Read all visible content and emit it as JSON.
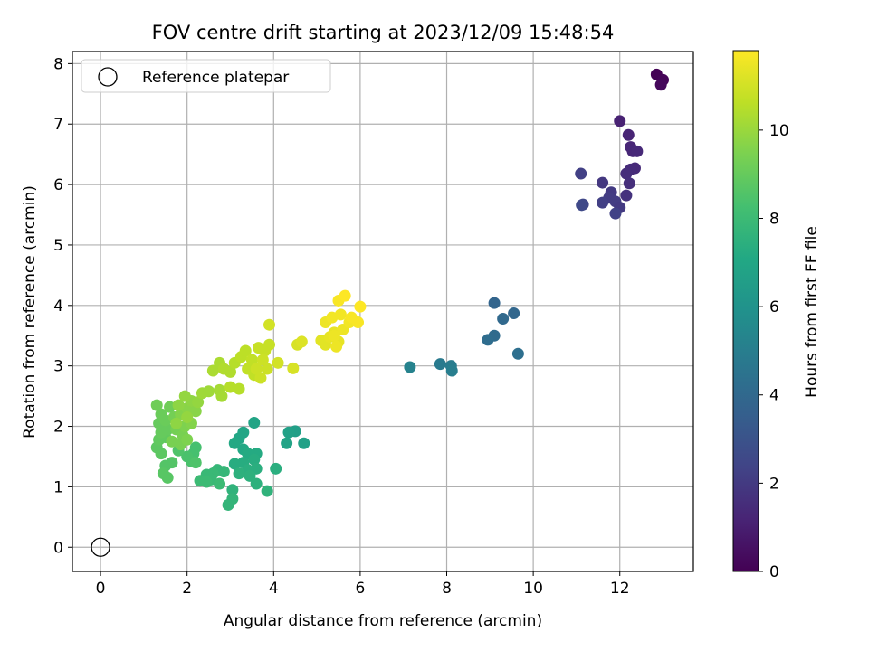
{
  "chart_data": {
    "type": "scatter",
    "title": "FOV centre drift starting at 2023/12/09 15:48:54",
    "xlabel": "Angular distance from reference (arcmin)",
    "ylabel": "Rotation from reference (arcmin)",
    "xlim": [
      -0.65,
      13.7
    ],
    "ylim": [
      -0.4,
      8.2
    ],
    "xticks": [
      0,
      2,
      4,
      6,
      8,
      10,
      12
    ],
    "yticks": [
      0,
      1,
      2,
      3,
      4,
      5,
      6,
      7,
      8
    ],
    "grid": true,
    "legend": {
      "position": "top-left",
      "entries": [
        "Reference platepar"
      ]
    },
    "reference_point": {
      "x": 0,
      "y": 0,
      "label": "Reference platepar"
    },
    "colorbar": {
      "label": "Hours from first FF file",
      "colormap": "viridis",
      "range": [
        0,
        11.8
      ],
      "ticks": [
        0,
        2,
        4,
        6,
        8,
        10
      ]
    },
    "points": [
      {
        "x": 12.85,
        "y": 7.82,
        "c": 0.05
      },
      {
        "x": 13.0,
        "y": 7.73,
        "c": 0.15
      },
      {
        "x": 12.95,
        "y": 7.65,
        "c": 0.25
      },
      {
        "x": 12.0,
        "y": 7.05,
        "c": 1.1
      },
      {
        "x": 12.2,
        "y": 6.82,
        "c": 1.2
      },
      {
        "x": 12.25,
        "y": 6.62,
        "c": 1.25
      },
      {
        "x": 12.3,
        "y": 6.55,
        "c": 1.3
      },
      {
        "x": 12.4,
        "y": 6.55,
        "c": 1.35
      },
      {
        "x": 12.35,
        "y": 6.27,
        "c": 1.4
      },
      {
        "x": 12.25,
        "y": 6.25,
        "c": 1.45
      },
      {
        "x": 12.15,
        "y": 6.18,
        "c": 1.5
      },
      {
        "x": 12.22,
        "y": 6.02,
        "c": 1.6
      },
      {
        "x": 12.15,
        "y": 5.82,
        "c": 1.7
      },
      {
        "x": 11.6,
        "y": 6.03,
        "c": 1.9
      },
      {
        "x": 11.1,
        "y": 6.18,
        "c": 2.2
      },
      {
        "x": 11.8,
        "y": 5.87,
        "c": 2.0
      },
      {
        "x": 11.75,
        "y": 5.78,
        "c": 2.1
      },
      {
        "x": 11.9,
        "y": 5.72,
        "c": 2.1
      },
      {
        "x": 11.6,
        "y": 5.7,
        "c": 2.2
      },
      {
        "x": 12.0,
        "y": 5.62,
        "c": 2.0
      },
      {
        "x": 11.9,
        "y": 5.52,
        "c": 2.3
      },
      {
        "x": 11.15,
        "y": 5.67,
        "c": 2.5
      },
      {
        "x": 11.12,
        "y": 5.66,
        "c": 2.6
      },
      {
        "x": 9.1,
        "y": 4.04,
        "c": 3.8
      },
      {
        "x": 9.55,
        "y": 3.87,
        "c": 3.9
      },
      {
        "x": 9.3,
        "y": 3.78,
        "c": 4.0
      },
      {
        "x": 9.1,
        "y": 3.5,
        "c": 4.1
      },
      {
        "x": 8.95,
        "y": 3.43,
        "c": 4.2
      },
      {
        "x": 9.65,
        "y": 3.2,
        "c": 4.3
      },
      {
        "x": 7.85,
        "y": 3.03,
        "c": 4.8
      },
      {
        "x": 8.1,
        "y": 3.0,
        "c": 4.9
      },
      {
        "x": 8.12,
        "y": 2.92,
        "c": 5.0
      },
      {
        "x": 7.15,
        "y": 2.98,
        "c": 5.2
      },
      {
        "x": 4.5,
        "y": 1.92,
        "c": 6.6
      },
      {
        "x": 4.35,
        "y": 1.9,
        "c": 6.7
      },
      {
        "x": 4.7,
        "y": 1.72,
        "c": 6.7
      },
      {
        "x": 4.3,
        "y": 1.72,
        "c": 6.8
      },
      {
        "x": 3.55,
        "y": 2.06,
        "c": 6.9
      },
      {
        "x": 3.3,
        "y": 1.9,
        "c": 7.0
      },
      {
        "x": 3.2,
        "y": 1.8,
        "c": 7.0
      },
      {
        "x": 3.1,
        "y": 1.72,
        "c": 7.1
      },
      {
        "x": 3.3,
        "y": 1.62,
        "c": 7.1
      },
      {
        "x": 3.4,
        "y": 1.55,
        "c": 7.2
      },
      {
        "x": 3.6,
        "y": 1.55,
        "c": 7.2
      },
      {
        "x": 3.55,
        "y": 1.45,
        "c": 7.3
      },
      {
        "x": 3.3,
        "y": 1.4,
        "c": 7.3
      },
      {
        "x": 3.1,
        "y": 1.38,
        "c": 7.3
      },
      {
        "x": 3.6,
        "y": 1.3,
        "c": 7.4
      },
      {
        "x": 3.4,
        "y": 1.28,
        "c": 7.4
      },
      {
        "x": 3.2,
        "y": 1.22,
        "c": 7.5
      },
      {
        "x": 3.45,
        "y": 1.18,
        "c": 7.5
      },
      {
        "x": 3.6,
        "y": 1.05,
        "c": 7.5
      },
      {
        "x": 4.05,
        "y": 1.3,
        "c": 7.4
      },
      {
        "x": 3.85,
        "y": 0.93,
        "c": 7.6
      },
      {
        "x": 3.05,
        "y": 0.95,
        "c": 7.6
      },
      {
        "x": 3.05,
        "y": 0.8,
        "c": 7.7
      },
      {
        "x": 2.95,
        "y": 0.7,
        "c": 7.7
      },
      {
        "x": 2.7,
        "y": 1.28,
        "c": 7.8
      },
      {
        "x": 2.85,
        "y": 1.25,
        "c": 7.8
      },
      {
        "x": 2.6,
        "y": 1.22,
        "c": 7.9
      },
      {
        "x": 2.45,
        "y": 1.2,
        "c": 7.9
      },
      {
        "x": 2.55,
        "y": 1.12,
        "c": 7.9
      },
      {
        "x": 2.3,
        "y": 1.1,
        "c": 8.0
      },
      {
        "x": 2.45,
        "y": 1.08,
        "c": 8.0
      },
      {
        "x": 2.75,
        "y": 1.05,
        "c": 8.0
      },
      {
        "x": 2.2,
        "y": 1.65,
        "c": 8.3
      },
      {
        "x": 2.15,
        "y": 1.55,
        "c": 8.3
      },
      {
        "x": 2.0,
        "y": 1.5,
        "c": 8.4
      },
      {
        "x": 2.1,
        "y": 1.42,
        "c": 8.4
      },
      {
        "x": 2.2,
        "y": 1.4,
        "c": 8.5
      },
      {
        "x": 1.8,
        "y": 1.6,
        "c": 8.5
      },
      {
        "x": 1.65,
        "y": 1.4,
        "c": 8.6
      },
      {
        "x": 1.5,
        "y": 1.35,
        "c": 8.6
      },
      {
        "x": 1.45,
        "y": 1.22,
        "c": 8.7
      },
      {
        "x": 1.55,
        "y": 1.15,
        "c": 8.7
      },
      {
        "x": 1.4,
        "y": 1.55,
        "c": 8.8
      },
      {
        "x": 1.3,
        "y": 1.65,
        "c": 8.8
      },
      {
        "x": 1.35,
        "y": 1.78,
        "c": 8.9
      },
      {
        "x": 1.5,
        "y": 1.82,
        "c": 8.9
      },
      {
        "x": 1.4,
        "y": 1.9,
        "c": 9.0
      },
      {
        "x": 1.55,
        "y": 1.95,
        "c": 9.0
      },
      {
        "x": 1.35,
        "y": 2.05,
        "c": 9.0
      },
      {
        "x": 1.5,
        "y": 2.1,
        "c": 9.1
      },
      {
        "x": 1.4,
        "y": 2.2,
        "c": 9.1
      },
      {
        "x": 1.3,
        "y": 2.35,
        "c": 9.2
      },
      {
        "x": 1.6,
        "y": 2.32,
        "c": 9.2
      },
      {
        "x": 1.7,
        "y": 2.15,
        "c": 9.3
      },
      {
        "x": 1.75,
        "y": 1.95,
        "c": 9.3
      },
      {
        "x": 1.9,
        "y": 1.85,
        "c": 9.4
      },
      {
        "x": 1.85,
        "y": 1.7,
        "c": 9.4
      },
      {
        "x": 1.65,
        "y": 1.75,
        "c": 9.4
      },
      {
        "x": 2.0,
        "y": 1.78,
        "c": 9.5
      },
      {
        "x": 1.95,
        "y": 2.0,
        "c": 9.5
      },
      {
        "x": 2.1,
        "y": 2.05,
        "c": 9.6
      },
      {
        "x": 1.85,
        "y": 2.2,
        "c": 9.6
      },
      {
        "x": 2.0,
        "y": 2.3,
        "c": 9.7
      },
      {
        "x": 2.2,
        "y": 2.25,
        "c": 9.7
      },
      {
        "x": 1.8,
        "y": 2.35,
        "c": 9.8
      },
      {
        "x": 2.1,
        "y": 2.42,
        "c": 9.8
      },
      {
        "x": 1.95,
        "y": 2.5,
        "c": 9.9
      },
      {
        "x": 2.25,
        "y": 2.4,
        "c": 9.9
      },
      {
        "x": 2.0,
        "y": 2.15,
        "c": 9.9
      },
      {
        "x": 1.75,
        "y": 2.05,
        "c": 9.8
      },
      {
        "x": 2.35,
        "y": 2.55,
        "c": 10.1
      },
      {
        "x": 2.5,
        "y": 2.58,
        "c": 10.1
      },
      {
        "x": 2.75,
        "y": 2.6,
        "c": 10.2
      },
      {
        "x": 2.8,
        "y": 2.5,
        "c": 10.2
      },
      {
        "x": 2.6,
        "y": 2.92,
        "c": 10.3
      },
      {
        "x": 2.75,
        "y": 3.05,
        "c": 10.3
      },
      {
        "x": 2.85,
        "y": 2.95,
        "c": 10.4
      },
      {
        "x": 3.0,
        "y": 2.9,
        "c": 10.4
      },
      {
        "x": 3.1,
        "y": 3.05,
        "c": 10.5
      },
      {
        "x": 3.0,
        "y": 2.65,
        "c": 10.5
      },
      {
        "x": 3.2,
        "y": 2.62,
        "c": 10.5
      },
      {
        "x": 3.25,
        "y": 3.15,
        "c": 10.6
      },
      {
        "x": 3.35,
        "y": 3.25,
        "c": 10.6
      },
      {
        "x": 3.5,
        "y": 3.1,
        "c": 10.7
      },
      {
        "x": 3.4,
        "y": 2.95,
        "c": 10.7
      },
      {
        "x": 3.55,
        "y": 2.85,
        "c": 10.7
      },
      {
        "x": 3.65,
        "y": 3.3,
        "c": 10.8
      },
      {
        "x": 3.8,
        "y": 3.25,
        "c": 10.8
      },
      {
        "x": 3.9,
        "y": 3.35,
        "c": 10.8
      },
      {
        "x": 3.75,
        "y": 3.1,
        "c": 10.9
      },
      {
        "x": 3.85,
        "y": 2.95,
        "c": 10.9
      },
      {
        "x": 3.6,
        "y": 2.95,
        "c": 10.9
      },
      {
        "x": 3.9,
        "y": 3.68,
        "c": 11.0
      },
      {
        "x": 4.1,
        "y": 3.05,
        "c": 11.0
      },
      {
        "x": 3.7,
        "y": 2.8,
        "c": 10.9
      },
      {
        "x": 4.45,
        "y": 2.96,
        "c": 11.1
      },
      {
        "x": 4.55,
        "y": 3.35,
        "c": 11.1
      },
      {
        "x": 4.65,
        "y": 3.4,
        "c": 11.2
      },
      {
        "x": 5.1,
        "y": 3.42,
        "c": 11.3
      },
      {
        "x": 5.2,
        "y": 3.35,
        "c": 11.3
      },
      {
        "x": 5.3,
        "y": 3.48,
        "c": 11.4
      },
      {
        "x": 5.4,
        "y": 3.55,
        "c": 11.4
      },
      {
        "x": 5.5,
        "y": 3.4,
        "c": 11.4
      },
      {
        "x": 5.45,
        "y": 3.32,
        "c": 11.5
      },
      {
        "x": 5.6,
        "y": 3.6,
        "c": 11.5
      },
      {
        "x": 5.2,
        "y": 3.72,
        "c": 11.5
      },
      {
        "x": 5.35,
        "y": 3.8,
        "c": 11.6
      },
      {
        "x": 5.55,
        "y": 3.85,
        "c": 11.6
      },
      {
        "x": 5.75,
        "y": 3.72,
        "c": 11.6
      },
      {
        "x": 5.95,
        "y": 3.72,
        "c": 11.7
      },
      {
        "x": 5.8,
        "y": 3.8,
        "c": 11.7
      },
      {
        "x": 5.5,
        "y": 4.08,
        "c": 11.7
      },
      {
        "x": 5.65,
        "y": 4.16,
        "c": 11.8
      },
      {
        "x": 6.0,
        "y": 3.98,
        "c": 11.8
      },
      {
        "x": 5.4,
        "y": 3.5,
        "c": 11.5
      }
    ]
  }
}
